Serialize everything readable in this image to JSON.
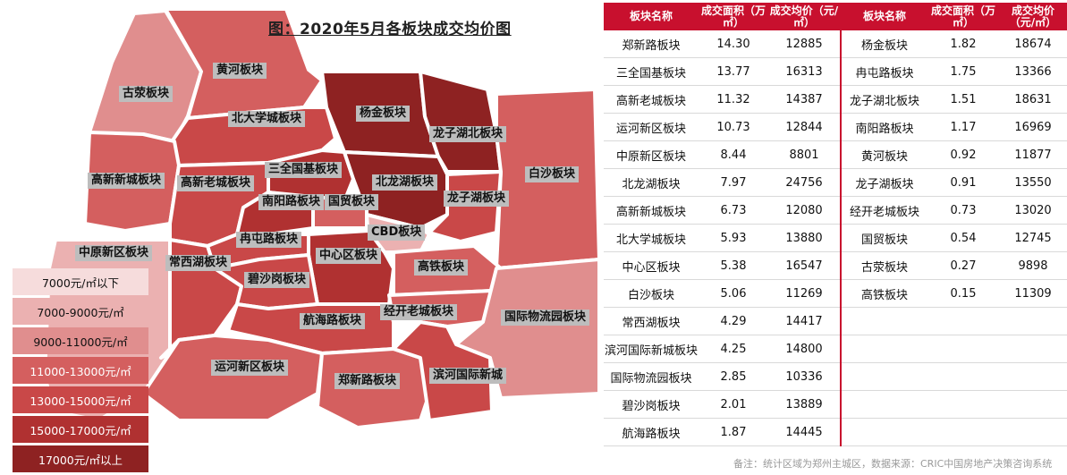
{
  "title": "图：2020年5月各板块成交均价图",
  "colors": {
    "header_red": "#c8102e",
    "bins": [
      "#f6dcdc",
      "#ebb1b1",
      "#e08e8e",
      "#d45f5f",
      "#c94848",
      "#b03131",
      "#8e2222"
    ]
  },
  "legend": [
    {
      "label": "7000元/㎡以下",
      "color": "#f6dcdc"
    },
    {
      "label": "7000-9000元/㎡",
      "color": "#ebb1b1"
    },
    {
      "label": "9000-11000元/㎡",
      "color": "#e08e8e"
    },
    {
      "label": "11000-13000元/㎡",
      "color": "#d45f5f"
    },
    {
      "label": "13000-15000元/㎡",
      "color": "#c94848"
    },
    {
      "label": "15000-17000元/㎡",
      "color": "#b03131"
    },
    {
      "label": "17000元/㎡以上",
      "color": "#8e2222"
    }
  ],
  "table": {
    "headers": [
      "板块名称",
      "成交面积（万㎡）",
      "成交均价（元/㎡）",
      "板块名称",
      "成交面积（万㎡）",
      "成交均价（元/㎡）"
    ]
  },
  "footnote": "备注：统计区域为郑州主城区，数据来源：CRIC中国房地产决策咨询系统",
  "chart_data": [
    {
      "type": "table",
      "title": "图：2020年5月各板块成交均价图",
      "columns": [
        "板块名称",
        "成交面积（万㎡）",
        "成交均价（元/㎡）"
      ],
      "rows": [
        [
          "郑新路板块",
          "14.30",
          "12885"
        ],
        [
          "三全国基板块",
          "13.77",
          "16313"
        ],
        [
          "高新老城板块",
          "11.32",
          "14387"
        ],
        [
          "运河新区板块",
          "10.73",
          "12844"
        ],
        [
          "中原新区板块",
          "8.44",
          "8801"
        ],
        [
          "北龙湖板块",
          "7.97",
          "24756"
        ],
        [
          "高新新城板块",
          "6.73",
          "12080"
        ],
        [
          "北大学城板块",
          "5.93",
          "13880"
        ],
        [
          "中心区板块",
          "5.38",
          "16547"
        ],
        [
          "白沙板块",
          "5.06",
          "11269"
        ],
        [
          "常西湖板块",
          "4.29",
          "14417"
        ],
        [
          "滨河国际新城板块",
          "4.25",
          "14800"
        ],
        [
          "国际物流园板块",
          "2.85",
          "10336"
        ],
        [
          "碧沙岗板块",
          "2.01",
          "13889"
        ],
        [
          "航海路板块",
          "1.87",
          "14445"
        ],
        [
          "杨金板块",
          "1.82",
          "18674"
        ],
        [
          "冉屯路板块",
          "1.75",
          "13366"
        ],
        [
          "龙子湖北板块",
          "1.51",
          "18631"
        ],
        [
          "南阳路板块",
          "1.17",
          "16969"
        ],
        [
          "黄河板块",
          "0.92",
          "11877"
        ],
        [
          "龙子湖板块",
          "0.91",
          "13550"
        ],
        [
          "经开老城板块",
          "0.73",
          "13020"
        ],
        [
          "国贸板块",
          "0.54",
          "12745"
        ],
        [
          "古荥板块",
          "0.27",
          "9898"
        ],
        [
          "高铁板块",
          "0.15",
          "11309"
        ]
      ]
    }
  ],
  "map_labels": [
    "黄河板块",
    "古荥板块",
    "北大学城板块",
    "杨金板块",
    "龙子湖北板块",
    "三全国基板块",
    "高新新城板块",
    "高新老城板块",
    "北龙湖板块",
    "白沙板块",
    "南阳路板块",
    "国贸板块",
    "龙子湖板块",
    "CBD板块",
    "冉屯路板块",
    "中原新区板块",
    "中心区板块",
    "常西湖板块",
    "高铁板块",
    "碧沙岗板块",
    "经开老城板块",
    "航海路板块",
    "国际物流园板块",
    "运河新区板块",
    "郑新路板块",
    "滨河国际新城"
  ]
}
